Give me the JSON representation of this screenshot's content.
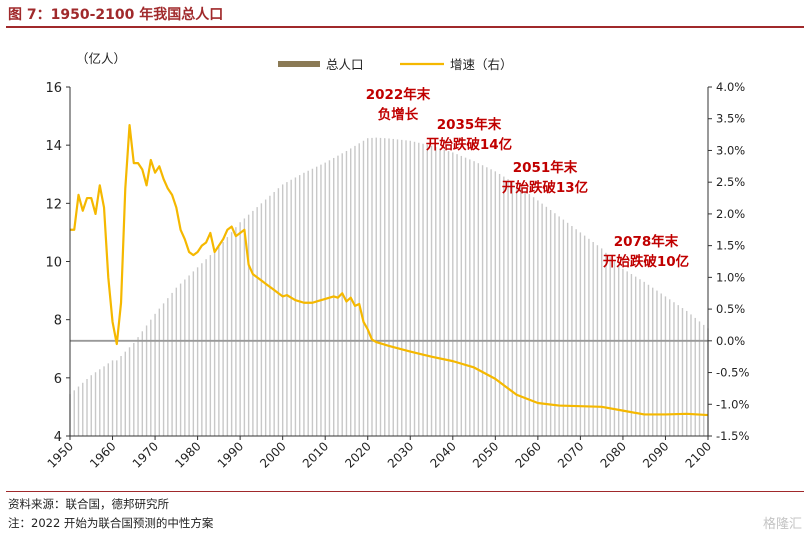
{
  "figure_title": "图 7：1950-2100 年我国总人口",
  "source_note": "资料来源：联合国，德邦研究所",
  "footnote": "注：2022 开始为联合国预测的中性方案",
  "watermark": "格隆汇",
  "chart_data": {
    "type": "bar+line",
    "left_axis_unit": "（亿人）",
    "ylim_left": [
      4,
      16
    ],
    "yticks_left": [
      "4",
      "6",
      "8",
      "10",
      "12",
      "14",
      "16"
    ],
    "ylim_right": [
      -1.5,
      4.0
    ],
    "yticks_right": [
      "-1.5%",
      "-1.0%",
      "-0.5%",
      "0.0%",
      "0.5%",
      "1.0%",
      "1.5%",
      "2.0%",
      "2.5%",
      "3.0%",
      "3.5%",
      "4.0%"
    ],
    "xlim": [
      1950,
      2100
    ],
    "xticks": [
      "1950",
      "1960",
      "1970",
      "1980",
      "1990",
      "2000",
      "2010",
      "2020",
      "2030",
      "2040",
      "2050",
      "2060",
      "2070",
      "2080",
      "2090",
      "2100"
    ],
    "grid": false,
    "legend": {
      "position": "top",
      "items": [
        "总人口",
        "增速（右）"
      ]
    },
    "colors": {
      "population_bars": "#c8c8c8",
      "legend_bar_swatch": "#8b7a55",
      "growth_line": "#f5b800",
      "annotation_text": "#c00000",
      "zero_line": "#999999"
    },
    "population": {
      "name": "总人口",
      "points": [
        [
          1950,
          5.44
        ],
        [
          1955,
          6.09
        ],
        [
          1960,
          6.6
        ],
        [
          1961,
          6.6
        ],
        [
          1965,
          7.2
        ],
        [
          1970,
          8.2
        ],
        [
          1975,
          9.1
        ],
        [
          1980,
          9.8
        ],
        [
          1985,
          10.5
        ],
        [
          1990,
          11.35
        ],
        [
          1995,
          12.0
        ],
        [
          2000,
          12.65
        ],
        [
          2005,
          13.05
        ],
        [
          2010,
          13.4
        ],
        [
          2015,
          13.8
        ],
        [
          2020,
          14.24
        ],
        [
          2022,
          14.26
        ],
        [
          2025,
          14.23
        ],
        [
          2030,
          14.15
        ],
        [
          2035,
          13.98
        ],
        [
          2040,
          13.75
        ],
        [
          2045,
          13.45
        ],
        [
          2050,
          13.1
        ],
        [
          2055,
          12.65
        ],
        [
          2060,
          12.1
        ],
        [
          2065,
          11.55
        ],
        [
          2070,
          11.0
        ],
        [
          2075,
          10.45
        ],
        [
          2078,
          10.0
        ],
        [
          2080,
          9.75
        ],
        [
          2085,
          9.3
        ],
        [
          2090,
          8.8
        ],
        [
          2095,
          8.3
        ],
        [
          2100,
          7.7
        ]
      ]
    },
    "growth": {
      "name": "增速（右）",
      "points": [
        [
          1950,
          1.75
        ],
        [
          1951,
          1.75
        ],
        [
          1952,
          2.3
        ],
        [
          1953,
          2.05
        ],
        [
          1954,
          2.25
        ],
        [
          1955,
          2.25
        ],
        [
          1956,
          2.0
        ],
        [
          1957,
          2.45
        ],
        [
          1958,
          2.1
        ],
        [
          1959,
          1.0
        ],
        [
          1960,
          0.3
        ],
        [
          1961,
          -0.05
        ],
        [
          1962,
          0.6
        ],
        [
          1963,
          2.4
        ],
        [
          1964,
          3.4
        ],
        [
          1965,
          2.8
        ],
        [
          1966,
          2.8
        ],
        [
          1967,
          2.7
        ],
        [
          1968,
          2.45
        ],
        [
          1969,
          2.85
        ],
        [
          1970,
          2.65
        ],
        [
          1971,
          2.75
        ],
        [
          1972,
          2.55
        ],
        [
          1973,
          2.4
        ],
        [
          1974,
          2.3
        ],
        [
          1975,
          2.1
        ],
        [
          1976,
          1.75
        ],
        [
          1977,
          1.6
        ],
        [
          1978,
          1.4
        ],
        [
          1979,
          1.35
        ],
        [
          1980,
          1.4
        ],
        [
          1981,
          1.5
        ],
        [
          1982,
          1.55
        ],
        [
          1983,
          1.7
        ],
        [
          1984,
          1.4
        ],
        [
          1985,
          1.5
        ],
        [
          1986,
          1.6
        ],
        [
          1987,
          1.75
        ],
        [
          1988,
          1.8
        ],
        [
          1989,
          1.65
        ],
        [
          1990,
          1.7
        ],
        [
          1991,
          1.75
        ],
        [
          1992,
          1.2
        ],
        [
          1993,
          1.05
        ],
        [
          1994,
          1.0
        ],
        [
          1995,
          0.95
        ],
        [
          1996,
          0.9
        ],
        [
          1997,
          0.85
        ],
        [
          1998,
          0.8
        ],
        [
          1999,
          0.75
        ],
        [
          2000,
          0.7
        ],
        [
          2001,
          0.72
        ],
        [
          2002,
          0.68
        ],
        [
          2003,
          0.64
        ],
        [
          2004,
          0.62
        ],
        [
          2005,
          0.6
        ],
        [
          2006,
          0.6
        ],
        [
          2007,
          0.6
        ],
        [
          2008,
          0.62
        ],
        [
          2009,
          0.64
        ],
        [
          2010,
          0.66
        ],
        [
          2011,
          0.68
        ],
        [
          2012,
          0.7
        ],
        [
          2013,
          0.68
        ],
        [
          2014,
          0.75
        ],
        [
          2015,
          0.62
        ],
        [
          2016,
          0.68
        ],
        [
          2017,
          0.55
        ],
        [
          2018,
          0.58
        ],
        [
          2019,
          0.3
        ],
        [
          2020,
          0.18
        ],
        [
          2021,
          0.02
        ],
        [
          2022,
          -0.02
        ],
        [
          2025,
          -0.08
        ],
        [
          2030,
          -0.17
        ],
        [
          2035,
          -0.25
        ],
        [
          2040,
          -0.32
        ],
        [
          2045,
          -0.42
        ],
        [
          2050,
          -0.6
        ],
        [
          2055,
          -0.85
        ],
        [
          2060,
          -0.98
        ],
        [
          2065,
          -1.02
        ],
        [
          2070,
          -1.03
        ],
        [
          2075,
          -1.04
        ],
        [
          2080,
          -1.1
        ],
        [
          2085,
          -1.16
        ],
        [
          2090,
          -1.16
        ],
        [
          2095,
          -1.15
        ],
        [
          2100,
          -1.17
        ]
      ]
    },
    "annotations": [
      {
        "lines": [
          "2022年末",
          "负增长"
        ]
      },
      {
        "lines": [
          "2035年末",
          "开始跌破14亿"
        ]
      },
      {
        "lines": [
          "2051年末",
          "开始跌破13亿"
        ]
      },
      {
        "lines": [
          "2078年末",
          "开始跌破10亿"
        ]
      }
    ]
  }
}
